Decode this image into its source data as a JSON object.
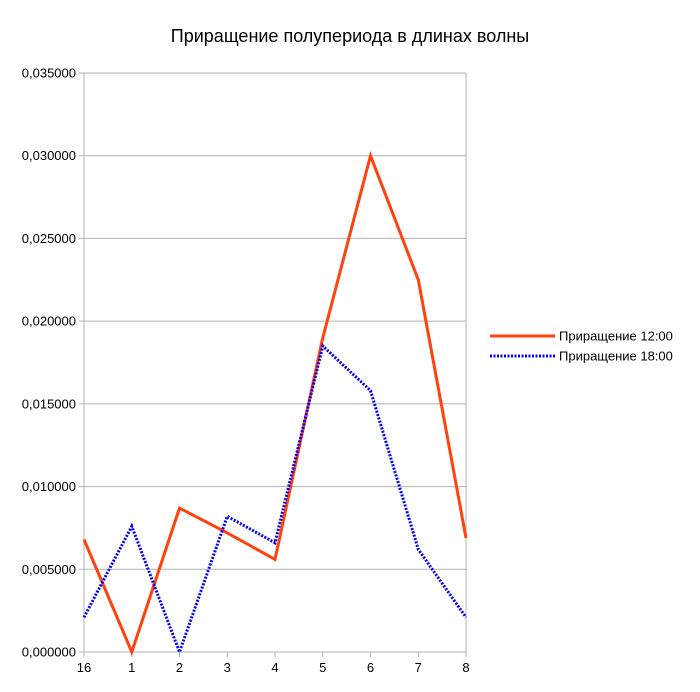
{
  "chart_data": {
    "type": "line",
    "title": "Приращение полупериода в длинах волны",
    "xlabel": "",
    "ylabel": "",
    "categories": [
      "16",
      "1",
      "2",
      "3",
      "4",
      "5",
      "6",
      "7",
      "8"
    ],
    "ylim": [
      0,
      0.035
    ],
    "yticks": [
      "0,000000",
      "0,005000",
      "0,010000",
      "0,015000",
      "0,020000",
      "0,025000",
      "0,030000",
      "0,035000"
    ],
    "grid": "horizontal",
    "legend_position": "right",
    "series": [
      {
        "name": "Приращение 12:00",
        "color": "#ff420e",
        "style": "solid",
        "values": [
          0.0068,
          0.0,
          0.0087,
          0.0072,
          0.0056,
          0.019,
          0.03,
          0.0225,
          0.0069
        ]
      },
      {
        "name": "Приращение 18:00",
        "color": "#0000ff",
        "style": "dotted",
        "values": [
          0.0021,
          0.0076,
          0.0,
          0.0082,
          0.0066,
          0.0185,
          0.0158,
          0.0062,
          0.0021
        ]
      }
    ]
  }
}
